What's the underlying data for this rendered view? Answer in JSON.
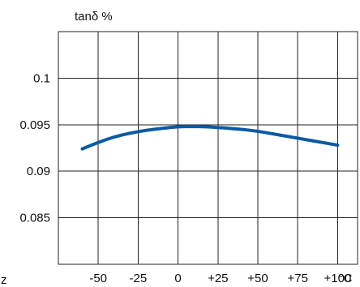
{
  "chart_data": {
    "type": "line",
    "title": "",
    "ylabel": "tanδ %",
    "xlabel": "°C",
    "left_partial_label": "z",
    "xlim": [
      -75,
      112.5
    ],
    "ylim": [
      0.08,
      0.105
    ],
    "x_ticks": [
      -50,
      -25,
      0,
      25,
      50,
      75,
      100
    ],
    "x_tick_labels": [
      "-50",
      "-25",
      "0",
      "+25",
      "+50",
      "+75",
      "+100"
    ],
    "x_grid": [
      -75,
      -50,
      -25,
      0,
      25,
      50,
      75,
      100,
      112.5
    ],
    "y_ticks": [
      0.1,
      0.095,
      0.09,
      0.085
    ],
    "y_tick_labels": [
      "0.1",
      "0.095",
      "0.09",
      "0.085"
    ],
    "y_grid": [
      0.105,
      0.1,
      0.095,
      0.09,
      0.085,
      0.08
    ],
    "grid": true,
    "legend": "none",
    "series": [
      {
        "color": "#0b5aa3",
        "x": [
          -60,
          -50,
          -40,
          -30,
          -20,
          -10,
          0,
          10,
          15,
          25,
          40,
          50,
          60,
          70,
          80,
          90,
          100
        ],
        "y": [
          0.0924,
          0.0931,
          0.0937,
          0.0941,
          0.0944,
          0.0946,
          0.0948,
          0.0948,
          0.0948,
          0.0947,
          0.0945,
          0.0943,
          0.094,
          0.0937,
          0.0934,
          0.0931,
          0.0928
        ]
      }
    ]
  }
}
